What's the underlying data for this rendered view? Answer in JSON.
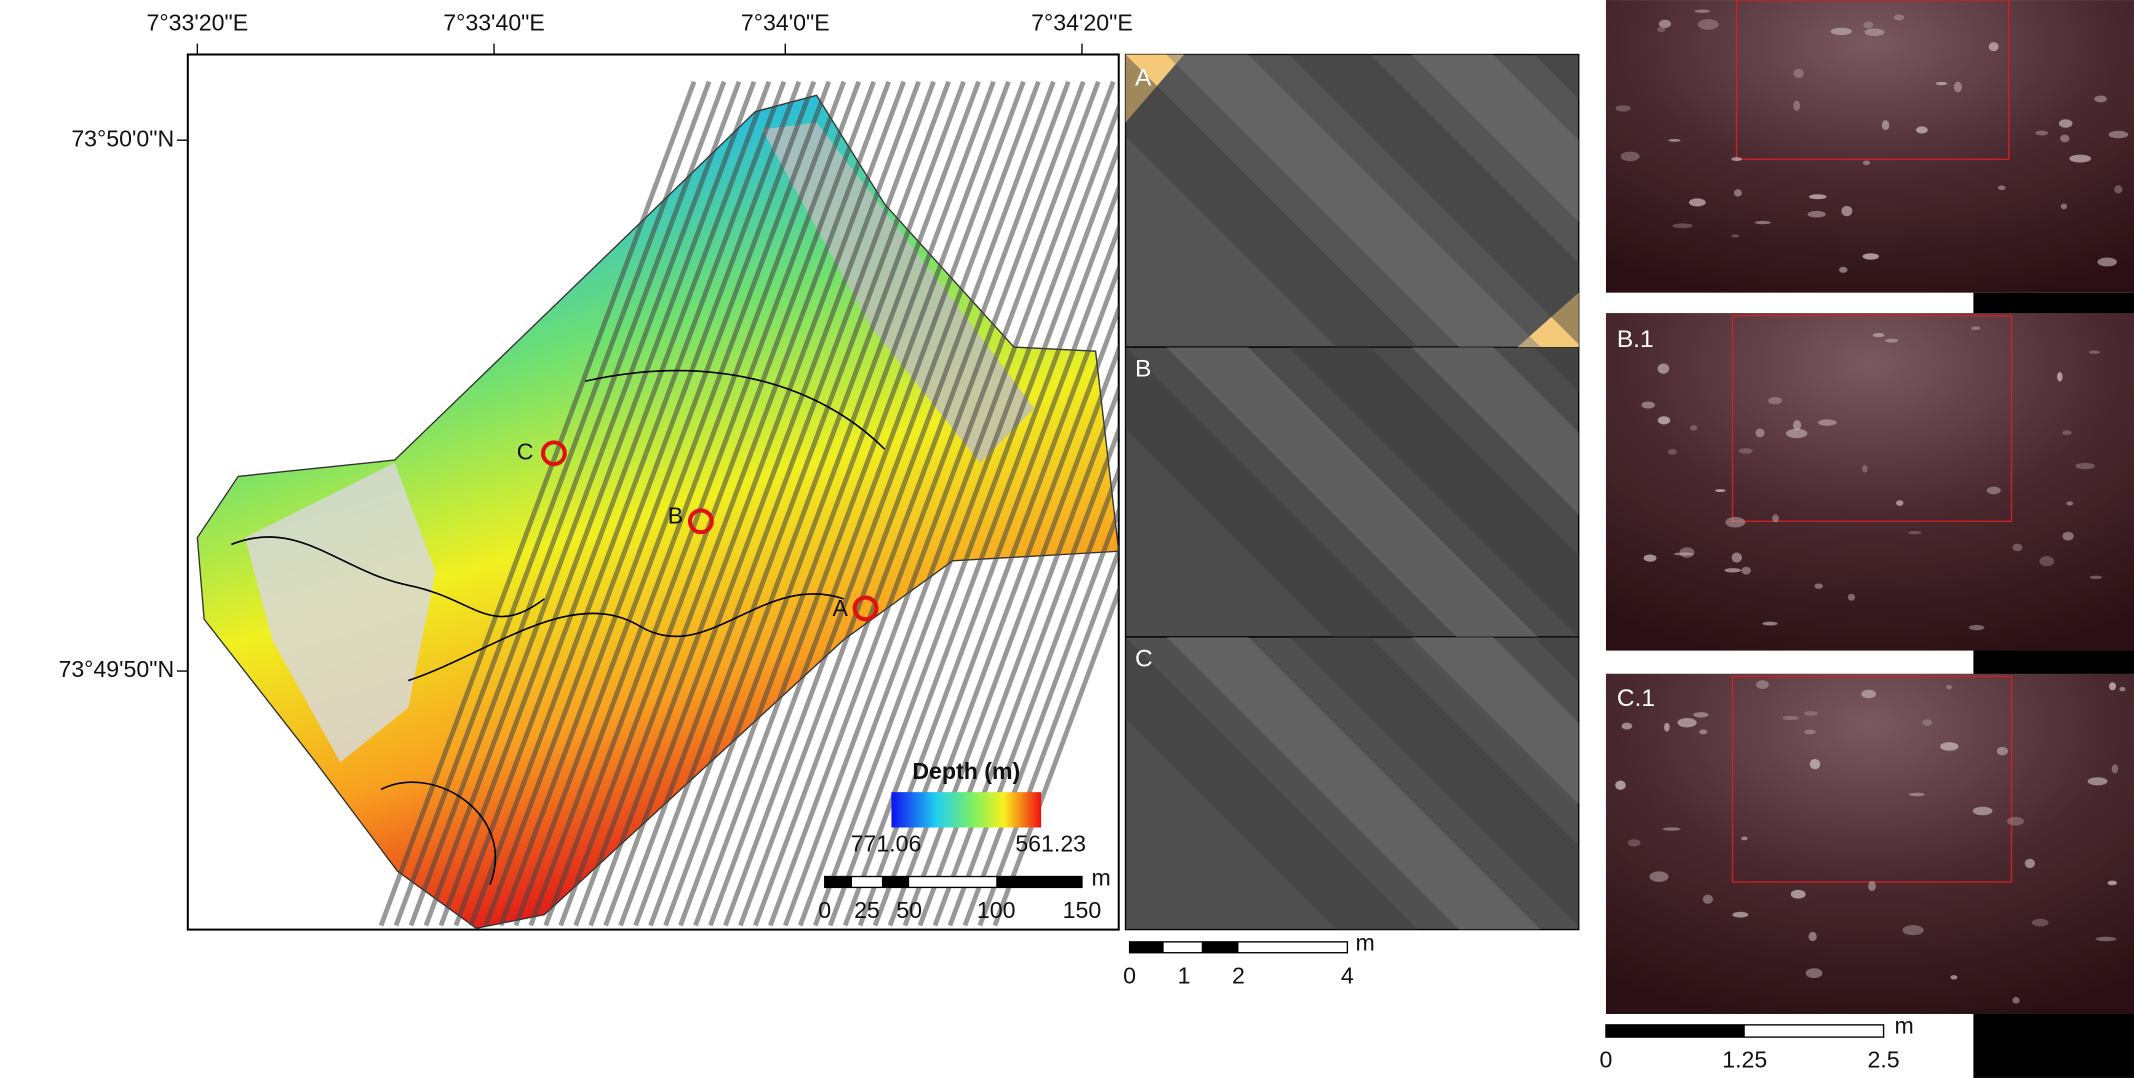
{
  "map": {
    "lon_labels": [
      "7°33'20\"E",
      "7°33'40\"E",
      "7°34'0\"E",
      "7°34'20\"E"
    ],
    "lat_labels": [
      "73°50'0\"N",
      "73°49'50\"N"
    ],
    "sites": [
      "C",
      "B",
      "A"
    ],
    "legend": {
      "title": "Depth (m)",
      "min_label": "771.06",
      "max_label": "561.23"
    },
    "scalebar": {
      "labels": [
        "0",
        "25",
        "50",
        "100",
        "150"
      ],
      "unit": "m"
    }
  },
  "mosaic": {
    "panels": [
      "A",
      "B",
      "C"
    ],
    "scalebar": {
      "labels": [
        "0",
        "1",
        "2",
        "4"
      ],
      "unit": "m"
    }
  },
  "photos": {
    "panels": [
      "B.1",
      "C.1"
    ],
    "scalebar": {
      "labels": [
        "0",
        "1.25",
        "2.5"
      ],
      "unit": "m"
    }
  }
}
